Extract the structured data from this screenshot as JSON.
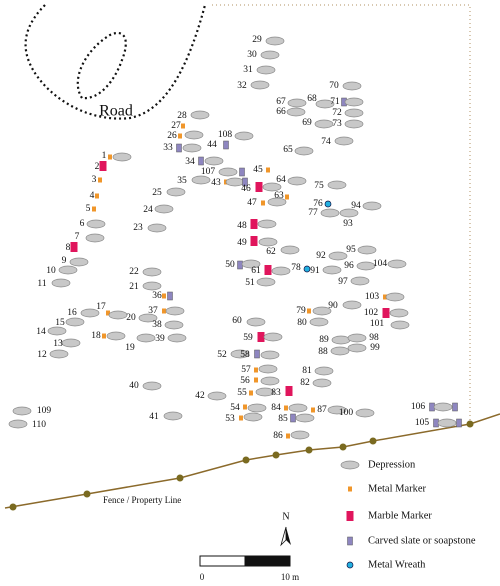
{
  "road_label": "Road",
  "graves": [
    "1",
    "2",
    "3",
    "4",
    "5",
    "6",
    "7",
    "8",
    "9",
    "10",
    "11",
    "12",
    "13",
    "14",
    "15",
    "16",
    "17",
    "18",
    "19",
    "20",
    "21",
    "22",
    "23",
    "24",
    "25",
    "26",
    "27",
    "28",
    "29",
    "30",
    "31",
    "32",
    "33",
    "34",
    "35",
    "36",
    "37",
    "38",
    "39",
    "40",
    "41",
    "42",
    "43",
    "44",
    "45",
    "46",
    "47",
    "48",
    "49",
    "50",
    "51",
    "52",
    "53",
    "54",
    "55",
    "56",
    "57",
    "58",
    "59",
    "60",
    "61",
    "62",
    "63",
    "64",
    "65",
    "66",
    "67",
    "68",
    "69",
    "70",
    "71",
    "72",
    "73",
    "74",
    "75",
    "76",
    "77",
    "78",
    "79",
    "80",
    "81",
    "82",
    "83",
    "84",
    "85",
    "86",
    "87",
    "88",
    "89",
    "90",
    "91",
    "92",
    "93",
    "94",
    "95",
    "96",
    "97",
    "98",
    "99",
    "100",
    "101",
    "102",
    "103",
    "104",
    "105",
    "106",
    "107",
    "108",
    "109",
    "110"
  ],
  "fence_label": "Fence / Property Line",
  "legend": [
    {
      "label": "Depression",
      "color": "#c8c8c8"
    },
    {
      "label": "Metal Marker",
      "color": "#f0962a"
    },
    {
      "label": "Marble Marker",
      "color": "#e0155c"
    },
    {
      "label": "Carved slate or soapstone",
      "color": "#8e86c0"
    },
    {
      "label": "Metal Wreath",
      "color": "#22b0e0"
    }
  ],
  "north_label": "N",
  "scale": {
    "start": "0",
    "end": "10 m"
  }
}
